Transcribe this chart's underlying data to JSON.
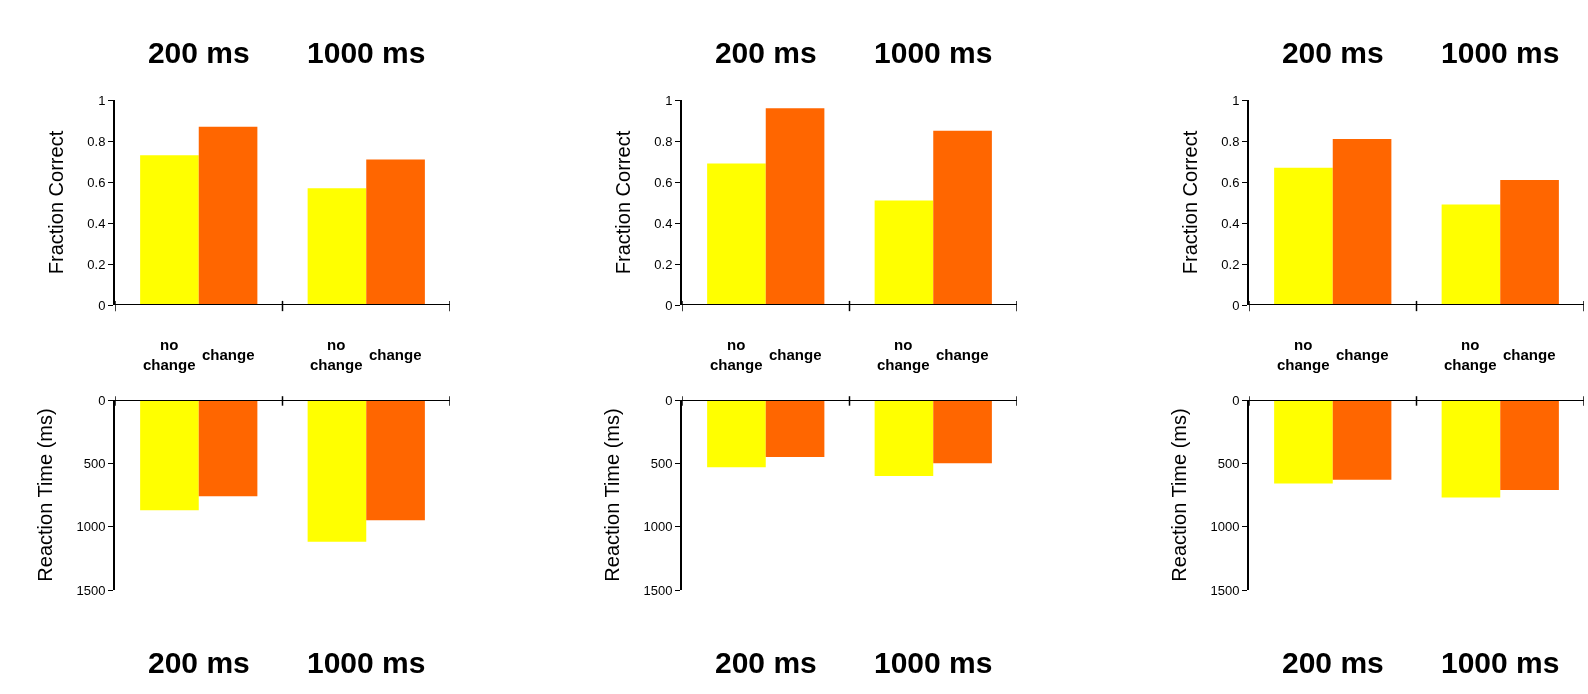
{
  "chart_data": [
    {
      "type": "bar",
      "categories": [
        "200 ms",
        "1000 ms"
      ],
      "ylabel": "Fraction Correct",
      "ylim": [
        0,
        1
      ],
      "yticks": [
        0,
        0.2,
        0.4,
        0.6,
        0.8,
        1
      ],
      "series": [
        {
          "name": "no change",
          "color": "#ffff00",
          "values": [
            0.73,
            0.57
          ]
        },
        {
          "name": "change",
          "color": "#ff6600",
          "values": [
            0.87,
            0.71
          ]
        }
      ]
    },
    {
      "type": "bar",
      "categories": [
        "200 ms",
        "1000 ms"
      ],
      "ylabel": "Fraction Correct",
      "ylim": [
        0,
        1
      ],
      "yticks": [
        0,
        0.2,
        0.4,
        0.6,
        0.8,
        1
      ],
      "series": [
        {
          "name": "no change",
          "color": "#ffff00",
          "values": [
            0.69,
            0.51
          ]
        },
        {
          "name": "change",
          "color": "#ff6600",
          "values": [
            0.96,
            0.85
          ]
        }
      ]
    },
    {
      "type": "bar",
      "categories": [
        "200 ms",
        "1000 ms"
      ],
      "ylabel": "Fraction Correct",
      "ylim": [
        0,
        1
      ],
      "yticks": [
        0,
        0.2,
        0.4,
        0.6,
        0.8,
        1
      ],
      "series": [
        {
          "name": "no change",
          "color": "#ffff00",
          "values": [
            0.67,
            0.49
          ]
        },
        {
          "name": "change",
          "color": "#ff6600",
          "values": [
            0.81,
            0.61
          ]
        }
      ]
    },
    {
      "type": "bar",
      "categories": [
        null,
        null
      ],
      "ylabel": "Reaction Time (ms)",
      "ylim": [
        1500,
        0
      ],
      "yticks": [
        0,
        500,
        1000,
        1500
      ],
      "tick_labels": "y",
      "annotations": [
        "200 ms",
        "1000 ms"
      ],
      "series": [
        {
          "color": "#ffff00",
          "values": [
            870,
            1120
          ]
        },
        {
          "color": "#ff6600",
          "values": [
            760,
            950
          ]
        }
      ]
    },
    {
      "type": "bar",
      "categories": [
        null,
        null
      ],
      "ylabel": "Reaction Time (ms)",
      "ylim": [
        1500,
        0
      ],
      "yticks": [
        0,
        500,
        1000,
        1500
      ],
      "tick_labels": "y",
      "annotations": [
        "200 ms",
        "1000 ms"
      ],
      "series": [
        {
          "color": "#ffff00",
          "values": [
            530,
            600
          ]
        },
        {
          "color": "#ff6600",
          "values": [
            450,
            500
          ]
        }
      ]
    },
    {
      "type": "bar",
      "categories": [
        null,
        null
      ],
      "ylabel": "Reaction Time (ms)",
      "ylim": [
        1500,
        0
      ],
      "yticks": [
        0,
        500,
        1000,
        1500
      ],
      "tick_labels": "y",
      "annotations": [
        "200 ms",
        "1000 ms"
      ],
      "series": [
        {
          "color": "#ffff00",
          "values": [
            660,
            770
          ]
        },
        {
          "color": "#ff6600",
          "values": [
            630,
            710
          ]
        }
      ]
    }
  ]
}
